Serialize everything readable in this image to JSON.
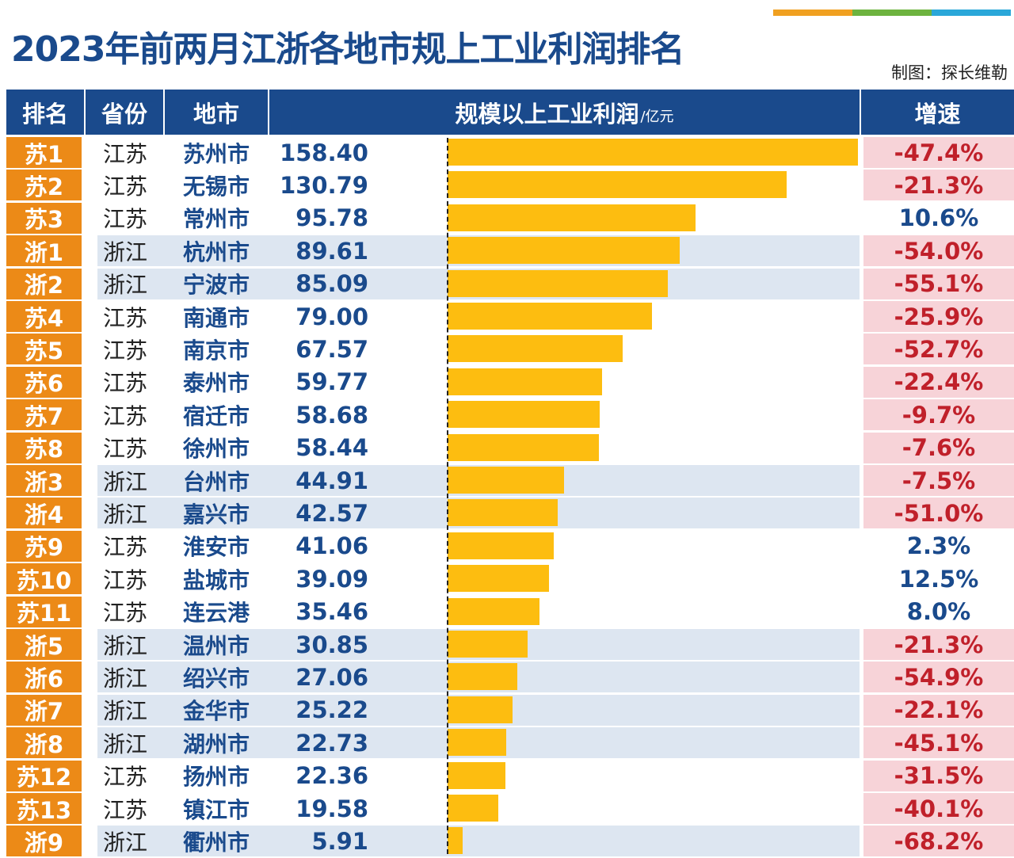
{
  "title": "2023年前两月江浙各地市规上工业利润排名",
  "credit": "制图：探长维勒",
  "colors": {
    "top_bar": [
      "#f0a020",
      "#6db33f",
      "#2aa7d9"
    ],
    "header": "#1a4a8c",
    "rank": "#ec8a17",
    "bar": "#fdbd10",
    "negative_bg": "#f7d3d8",
    "negative_text": "#c0202a",
    "zhejiang_row_bg": "#dde6f1"
  },
  "header": {
    "rank": "排名",
    "province": "省份",
    "city": "地市",
    "profit": "规模以上工业利润",
    "profit_unit": "/亿元",
    "growth": "增速"
  },
  "chart_data": {
    "type": "bar",
    "orientation": "horizontal",
    "title": "2023年前两月江浙各地市规上工业利润排名",
    "unit": "亿元",
    "xlim": [
      0,
      158.4
    ],
    "rows": [
      {
        "rank": "苏1",
        "province": "江苏",
        "city": "苏州市",
        "value": 158.4,
        "value_text": "158.40",
        "growth": "-47.4%"
      },
      {
        "rank": "苏2",
        "province": "江苏",
        "city": "无锡市",
        "value": 130.79,
        "value_text": "130.79",
        "growth": "-21.3%"
      },
      {
        "rank": "苏3",
        "province": "江苏",
        "city": "常州市",
        "value": 95.78,
        "value_text": "95.78",
        "growth": "10.6%"
      },
      {
        "rank": "浙1",
        "province": "浙江",
        "city": "杭州市",
        "value": 89.61,
        "value_text": "89.61",
        "growth": "-54.0%"
      },
      {
        "rank": "浙2",
        "province": "浙江",
        "city": "宁波市",
        "value": 85.09,
        "value_text": "85.09",
        "growth": "-55.1%"
      },
      {
        "rank": "苏4",
        "province": "江苏",
        "city": "南通市",
        "value": 79.0,
        "value_text": "79.00",
        "growth": "-25.9%"
      },
      {
        "rank": "苏5",
        "province": "江苏",
        "city": "南京市",
        "value": 67.57,
        "value_text": "67.57",
        "growth": "-52.7%"
      },
      {
        "rank": "苏6",
        "province": "江苏",
        "city": "泰州市",
        "value": 59.77,
        "value_text": "59.77",
        "growth": "-22.4%"
      },
      {
        "rank": "苏7",
        "province": "江苏",
        "city": "宿迁市",
        "value": 58.68,
        "value_text": "58.68",
        "growth": "-9.7%"
      },
      {
        "rank": "苏8",
        "province": "江苏",
        "city": "徐州市",
        "value": 58.44,
        "value_text": "58.44",
        "growth": "-7.6%"
      },
      {
        "rank": "浙3",
        "province": "浙江",
        "city": "台州市",
        "value": 44.91,
        "value_text": "44.91",
        "growth": "-7.5%"
      },
      {
        "rank": "浙4",
        "province": "浙江",
        "city": "嘉兴市",
        "value": 42.57,
        "value_text": "42.57",
        "growth": "-51.0%"
      },
      {
        "rank": "苏9",
        "province": "江苏",
        "city": "淮安市",
        "value": 41.06,
        "value_text": "41.06",
        "growth": "2.3%"
      },
      {
        "rank": "苏10",
        "province": "江苏",
        "city": "盐城市",
        "value": 39.09,
        "value_text": "39.09",
        "growth": "12.5%"
      },
      {
        "rank": "苏11",
        "province": "江苏",
        "city": "连云港",
        "value": 35.46,
        "value_text": "35.46",
        "growth": "8.0%"
      },
      {
        "rank": "浙5",
        "province": "浙江",
        "city": "温州市",
        "value": 30.85,
        "value_text": "30.85",
        "growth": "-21.3%"
      },
      {
        "rank": "浙6",
        "province": "浙江",
        "city": "绍兴市",
        "value": 27.06,
        "value_text": "27.06",
        "growth": "-54.9%"
      },
      {
        "rank": "浙7",
        "province": "浙江",
        "city": "金华市",
        "value": 25.22,
        "value_text": "25.22",
        "growth": "-22.1%"
      },
      {
        "rank": "浙8",
        "province": "浙江",
        "city": "湖州市",
        "value": 22.73,
        "value_text": "22.73",
        "growth": "-45.1%"
      },
      {
        "rank": "苏12",
        "province": "江苏",
        "city": "扬州市",
        "value": 22.36,
        "value_text": "22.36",
        "growth": "-31.5%"
      },
      {
        "rank": "苏13",
        "province": "江苏",
        "city": "镇江市",
        "value": 19.58,
        "value_text": "19.58",
        "growth": "-40.1%"
      },
      {
        "rank": "浙9",
        "province": "浙江",
        "city": "衢州市",
        "value": 5.91,
        "value_text": "5.91",
        "growth": "-68.2%"
      }
    ]
  }
}
